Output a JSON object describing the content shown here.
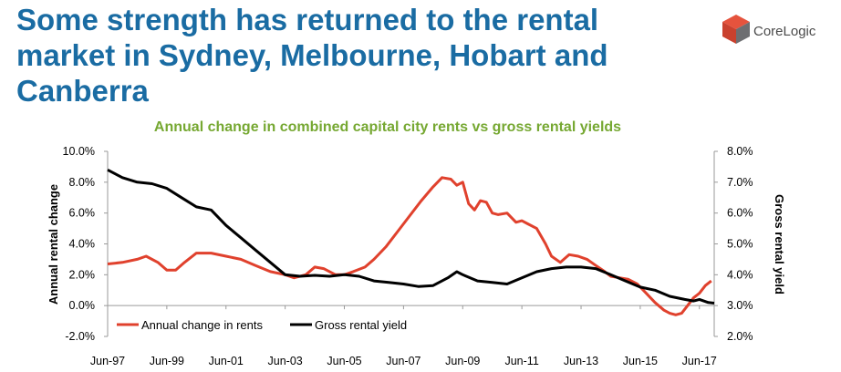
{
  "slide": {
    "title": "Some strength has returned to the rental market in Sydney, Melbourne, Hobart and Canberra",
    "logo_text": "CoreLogic",
    "brand_colors": {
      "title": "#1a6ca3",
      "logo_red": "#e5533d",
      "logo_grey": "#6d6e71"
    }
  },
  "chart_data": {
    "type": "line",
    "title": "Annual change in combined capital city rents vs gross rental yields",
    "ylabel": "Annual rental change",
    "y2label": "Gross rental yield",
    "ylim": [
      -2.0,
      10.0
    ],
    "y2lim": [
      2.0,
      8.0
    ],
    "yticks": [
      "10.0%",
      "8.0%",
      "6.0%",
      "4.0%",
      "2.0%",
      "0.0%",
      "-2.0%"
    ],
    "y2ticks": [
      "8.0%",
      "7.0%",
      "6.0%",
      "5.0%",
      "4.0%",
      "3.0%",
      "2.0%"
    ],
    "xticks": [
      "Jun-97",
      "Jun-99",
      "Jun-01",
      "Jun-03",
      "Jun-05",
      "Jun-07",
      "Jun-09",
      "Jun-11",
      "Jun-13",
      "Jun-15",
      "Jun-17"
    ],
    "xlim": [
      1997.0,
      2017.5
    ],
    "grid": false,
    "legend": "bottom-left",
    "series": [
      {
        "name": "Annual change in rents",
        "axis": "left",
        "color": "#e0412d",
        "x": [
          1997.0,
          1997.5,
          1998.0,
          1998.3,
          1998.7,
          1999.0,
          1999.3,
          1999.6,
          2000.0,
          2000.5,
          2001.0,
          2001.5,
          2002.0,
          2002.5,
          2003.0,
          2003.3,
          2003.7,
          2004.0,
          2004.3,
          2004.7,
          2005.0,
          2005.3,
          2005.7,
          2006.0,
          2006.4,
          2006.8,
          2007.2,
          2007.6,
          2008.0,
          2008.3,
          2008.6,
          2008.8,
          2009.0,
          2009.2,
          2009.4,
          2009.6,
          2009.8,
          2010.0,
          2010.2,
          2010.5,
          2010.8,
          2011.0,
          2011.2,
          2011.5,
          2011.8,
          2012.0,
          2012.3,
          2012.6,
          2012.9,
          2013.2,
          2013.5,
          2013.8,
          2014.0,
          2014.3,
          2014.6,
          2014.9,
          2015.2,
          2015.5,
          2015.8,
          2016.0,
          2016.2,
          2016.4,
          2016.6,
          2016.8,
          2017.0,
          2017.2,
          2017.4
        ],
        "values": [
          2.7,
          2.8,
          3.0,
          3.2,
          2.8,
          2.3,
          2.3,
          2.8,
          3.4,
          3.4,
          3.2,
          3.0,
          2.6,
          2.2,
          2.0,
          1.8,
          2.0,
          2.5,
          2.4,
          2.0,
          2.0,
          2.2,
          2.5,
          3.0,
          3.8,
          4.8,
          5.8,
          6.8,
          7.7,
          8.3,
          8.2,
          7.8,
          8.0,
          6.6,
          6.2,
          6.8,
          6.7,
          6.0,
          5.9,
          6.0,
          5.4,
          5.5,
          5.3,
          5.0,
          4.0,
          3.2,
          2.8,
          3.3,
          3.2,
          3.0,
          2.6,
          2.2,
          1.9,
          1.8,
          1.7,
          1.4,
          0.8,
          0.2,
          -0.3,
          -0.5,
          -0.6,
          -0.5,
          0.0,
          0.5,
          0.8,
          1.3,
          1.6
        ]
      },
      {
        "name": "Gross rental yield",
        "axis": "right",
        "color": "#000000",
        "x": [
          1997.0,
          1997.5,
          1998.0,
          1998.5,
          1999.0,
          1999.5,
          2000.0,
          2000.5,
          2001.0,
          2001.5,
          2002.0,
          2002.5,
          2003.0,
          2003.5,
          2004.0,
          2004.5,
          2005.0,
          2005.5,
          2006.0,
          2006.5,
          2007.0,
          2007.5,
          2008.0,
          2008.5,
          2008.8,
          2009.0,
          2009.5,
          2010.0,
          2010.5,
          2011.0,
          2011.5,
          2012.0,
          2012.5,
          2013.0,
          2013.5,
          2014.0,
          2014.5,
          2015.0,
          2015.5,
          2016.0,
          2016.5,
          2016.8,
          2017.0,
          2017.3,
          2017.5
        ],
        "values": [
          7.4,
          7.15,
          7.0,
          6.95,
          6.8,
          6.5,
          6.2,
          6.1,
          5.6,
          5.2,
          4.8,
          4.4,
          4.0,
          3.95,
          3.98,
          3.95,
          4.0,
          3.95,
          3.8,
          3.75,
          3.7,
          3.62,
          3.65,
          3.9,
          4.1,
          4.0,
          3.8,
          3.75,
          3.7,
          3.9,
          4.1,
          4.2,
          4.25,
          4.25,
          4.2,
          4.0,
          3.8,
          3.6,
          3.5,
          3.3,
          3.2,
          3.15,
          3.2,
          3.1,
          3.08
        ]
      }
    ]
  }
}
